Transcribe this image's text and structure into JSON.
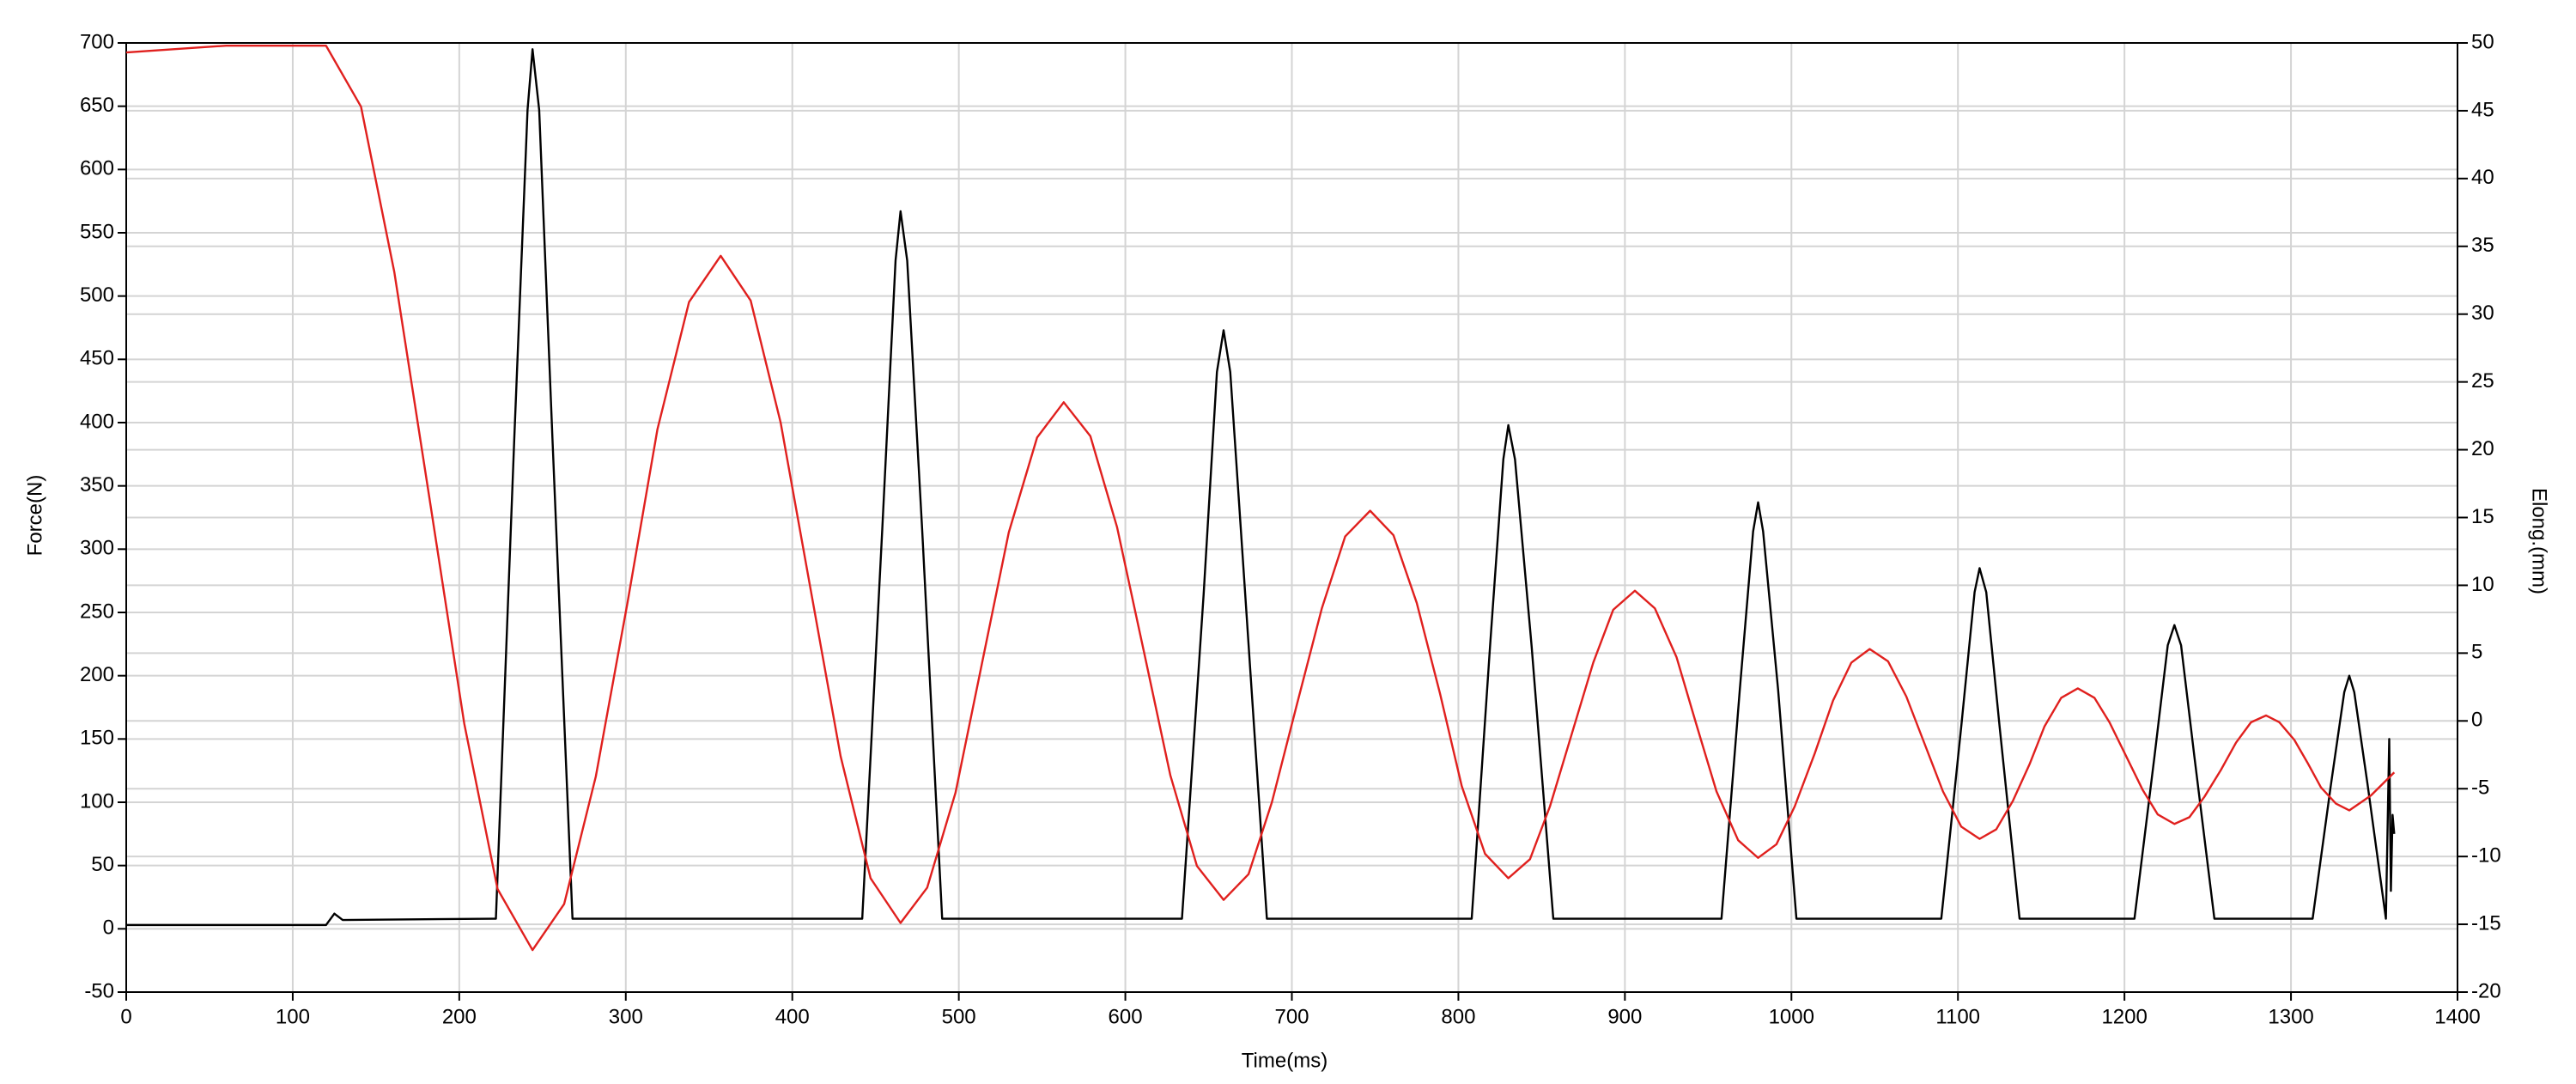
{
  "chart_data": {
    "type": "line",
    "x_label": "Time(ms)",
    "y_label": "Force(N)",
    "y2_label": "Elong.(mm)",
    "xlim": [
      0,
      1400
    ],
    "xticks": [
      0,
      100,
      200,
      300,
      400,
      500,
      600,
      700,
      800,
      900,
      1000,
      1100,
      1200,
      1300,
      1400
    ],
    "ylim": [
      -50,
      700
    ],
    "yticks": [
      -50,
      0,
      50,
      100,
      150,
      200,
      250,
      300,
      350,
      400,
      450,
      500,
      550,
      600,
      650,
      700
    ],
    "y2lim": [
      -20,
      50
    ],
    "y2ticks": [
      -20,
      -15,
      -10,
      -5,
      0,
      5,
      10,
      15,
      20,
      25,
      30,
      35,
      40,
      45,
      50
    ],
    "grid": true,
    "series": [
      {
        "color": "#000000",
        "x": [
          0,
          120,
          125,
          130,
          220,
          222,
          233,
          241,
          244,
          248,
          256,
          268,
          442,
          454,
          462,
          465,
          469,
          478,
          490,
          634,
          647,
          655,
          659,
          663,
          672,
          685,
          808,
          819,
          827,
          830,
          834,
          844,
          857,
          958,
          969,
          977,
          980,
          983,
          992,
          1003,
          1090,
          1102,
          1110,
          1113,
          1117,
          1125,
          1137,
          1206,
          1218,
          1226,
          1230,
          1234,
          1242,
          1254,
          1313,
          1324,
          1332,
          1335,
          1338,
          1346,
          1357,
          1359,
          1360,
          1361,
          1362
        ],
        "values": [
          3,
          3,
          12,
          7,
          8,
          8,
          386,
          647,
          695,
          647,
          386,
          8,
          8,
          315,
          528,
          567,
          528,
          315,
          8,
          8,
          264,
          440,
          473,
          440,
          264,
          8,
          8,
          223,
          371,
          398,
          371,
          223,
          8,
          8,
          189,
          314,
          337,
          314,
          189,
          8,
          8,
          160,
          266,
          285,
          266,
          160,
          8,
          8,
          136,
          224,
          240,
          224,
          136,
          8,
          8,
          114,
          187,
          200,
          187,
          114,
          8,
          150,
          30,
          90,
          75
        ]
      },
      {
        "color": "#e0201e",
        "axis": "y2",
        "x": [
          0,
          60,
          120,
          141,
          161,
          182,
          203,
          223,
          244,
          263,
          282,
          301,
          319,
          338,
          357,
          375,
          393,
          411,
          429,
          447,
          465,
          481,
          498,
          514,
          530,
          547,
          563,
          579,
          595,
          611,
          627,
          643,
          659,
          674,
          688,
          703,
          718,
          732,
          747,
          761,
          775,
          789,
          802,
          816,
          830,
          843,
          855,
          868,
          881,
          893,
          906,
          918,
          931,
          943,
          955,
          968,
          980,
          991,
          1002,
          1014,
          1025,
          1036,
          1047,
          1058,
          1069,
          1080,
          1091,
          1102,
          1113,
          1123,
          1133,
          1143,
          1152,
          1162,
          1172,
          1182,
          1191,
          1201,
          1211,
          1220,
          1230,
          1239,
          1248,
          1258,
          1267,
          1276,
          1285,
          1293,
          1302,
          1310,
          1318,
          1327,
          1335,
          1348,
          1362
        ],
        "values": [
          49.3,
          49.8,
          49.8,
          45.3,
          33.1,
          16.5,
          -0.2,
          -12.4,
          -16.9,
          -13.5,
          -4.1,
          8.7,
          21.5,
          30.9,
          34.3,
          31.0,
          22.0,
          9.7,
          -2.6,
          -11.6,
          -14.9,
          -12.3,
          -5.3,
          4.3,
          13.9,
          20.9,
          23.5,
          21.0,
          14.3,
          5.2,
          -4.0,
          -10.7,
          -13.2,
          -11.3,
          -6.0,
          1.2,
          8.3,
          13.6,
          15.5,
          13.7,
          8.7,
          2.0,
          -4.8,
          -9.8,
          -11.6,
          -10.2,
          -6.3,
          -1.0,
          4.3,
          8.2,
          9.6,
          8.3,
          4.7,
          -0.3,
          -5.2,
          -8.8,
          -10.1,
          -9.1,
          -6.3,
          -2.4,
          1.5,
          4.3,
          5.3,
          4.4,
          1.8,
          -1.7,
          -5.2,
          -7.8,
          -8.7,
          -8.0,
          -5.9,
          -3.2,
          -0.4,
          1.7,
          2.4,
          1.7,
          -0.1,
          -2.6,
          -5.1,
          -6.9,
          -7.6,
          -7.1,
          -5.6,
          -3.6,
          -1.6,
          -0.1,
          0.4,
          -0.1,
          -1.4,
          -3.1,
          -4.9,
          -6.1,
          -6.6,
          -5.5,
          -3.8
        ]
      }
    ]
  }
}
